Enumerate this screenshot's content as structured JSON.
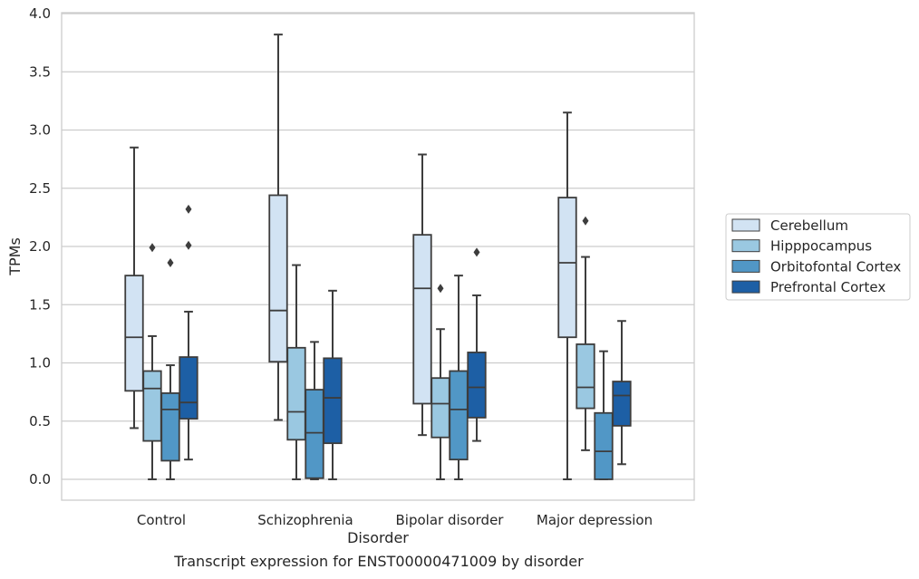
{
  "chart_data": {
    "type": "boxplot",
    "xlabel": "Disorder",
    "ylabel": "TPMs",
    "caption": "Transcript expression for ENST00000471009 by disorder",
    "ylim": [
      -0.18,
      4.02
    ],
    "yticks": [
      "0.0",
      "0.5",
      "1.0",
      "1.5",
      "2.0",
      "2.5",
      "3.0",
      "3.5",
      "4.0"
    ],
    "ytick_values": [
      0,
      0.5,
      1,
      1.5,
      2,
      2.5,
      3,
      3.5,
      4
    ],
    "grid": "horizontal",
    "legend_position": "right",
    "categories": [
      "Control",
      "Schizophrenia",
      "Bipolar disorder",
      "Major depression"
    ],
    "series": [
      {
        "name": "Cerebellum",
        "color": "#d2e3f3",
        "boxes": [
          {
            "min": 0.44,
            "q1": 0.76,
            "median": 1.22,
            "q3": 1.75,
            "max": 2.85,
            "outliers": []
          },
          {
            "min": 0.51,
            "q1": 1.01,
            "median": 1.45,
            "q3": 2.44,
            "max": 3.82,
            "outliers": []
          },
          {
            "min": 0.38,
            "q1": 0.65,
            "median": 1.64,
            "q3": 2.1,
            "max": 2.79,
            "outliers": []
          },
          {
            "min": 0.0,
            "q1": 1.22,
            "median": 1.86,
            "q3": 2.42,
            "max": 3.15,
            "outliers": []
          }
        ]
      },
      {
        "name": "Hipppocampus",
        "color": "#9ac8e1",
        "boxes": [
          {
            "min": 0.0,
            "q1": 0.33,
            "median": 0.78,
            "q3": 0.93,
            "max": 1.23,
            "outliers": [
              1.99
            ]
          },
          {
            "min": 0.0,
            "q1": 0.34,
            "median": 0.58,
            "q3": 1.13,
            "max": 1.84,
            "outliers": []
          },
          {
            "min": 0.0,
            "q1": 0.36,
            "median": 0.65,
            "q3": 0.87,
            "max": 1.29,
            "outliers": [
              1.64
            ]
          },
          {
            "min": 0.25,
            "q1": 0.61,
            "median": 0.79,
            "q3": 1.16,
            "max": 1.91,
            "outliers": [
              2.22
            ]
          }
        ]
      },
      {
        "name": "Orbitofontal Cortex",
        "color": "#5197c6",
        "boxes": [
          {
            "min": 0.0,
            "q1": 0.16,
            "median": 0.6,
            "q3": 0.74,
            "max": 0.98,
            "outliers": [
              1.86
            ]
          },
          {
            "min": 0.0,
            "q1": 0.01,
            "median": 0.4,
            "q3": 0.77,
            "max": 1.18,
            "outliers": []
          },
          {
            "min": 0.0,
            "q1": 0.17,
            "median": 0.6,
            "q3": 0.93,
            "max": 1.75,
            "outliers": []
          },
          {
            "min": 0.0,
            "q1": 0.0,
            "median": 0.24,
            "q3": 0.57,
            "max": 1.1,
            "outliers": []
          }
        ]
      },
      {
        "name": "Prefrontal Cortex",
        "color": "#1d5fa5",
        "boxes": [
          {
            "min": 0.17,
            "q1": 0.52,
            "median": 0.66,
            "q3": 1.05,
            "max": 1.44,
            "outliers": [
              2.01,
              2.32
            ]
          },
          {
            "min": 0.0,
            "q1": 0.31,
            "median": 0.7,
            "q3": 1.04,
            "max": 1.62,
            "outliers": []
          },
          {
            "min": 0.33,
            "q1": 0.53,
            "median": 0.79,
            "q3": 1.09,
            "max": 1.58,
            "outliers": [
              1.95
            ]
          },
          {
            "min": 0.13,
            "q1": 0.46,
            "median": 0.72,
            "q3": 0.84,
            "max": 1.36,
            "outliers": []
          }
        ]
      }
    ],
    "colors": {
      "grid": "#cccccc",
      "frame": "#cccccc",
      "box_edge": "#3d3d3d",
      "legend_border": "#cccccc"
    }
  }
}
